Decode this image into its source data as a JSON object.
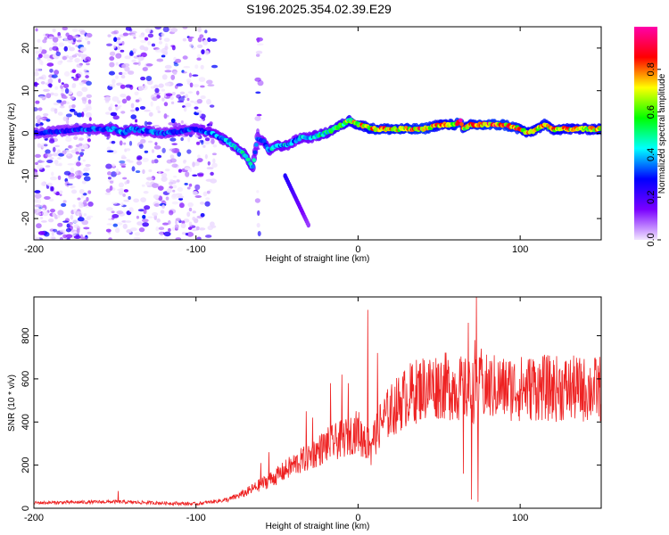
{
  "title": "S196.2025.354.02.39.E29",
  "chart_data": [
    {
      "type": "heatmap",
      "xlabel": "Height of straight line (km)",
      "ylabel": "Frequency (Hz)",
      "xlim": [
        -200,
        150
      ],
      "ylim": [
        -25,
        25
      ],
      "xticks": [
        -200,
        -100,
        0,
        100
      ],
      "xtick_labels": [
        "-200",
        "-100",
        "0",
        "100"
      ],
      "yticks": [
        -20,
        -10,
        0,
        10,
        20
      ],
      "ytick_labels": [
        "-20",
        "-10",
        "0",
        "10",
        "20"
      ],
      "colorbar": {
        "label": "Normalized spectral amplitude",
        "range": [
          0.0,
          1.0
        ],
        "ticks": [
          0.0,
          0.2,
          0.4,
          0.6,
          0.8
        ],
        "tick_labels": [
          "0.0",
          "0.2",
          "0.4",
          "0.6",
          "0.8"
        ],
        "colors": [
          "#f2e6ff",
          "#7a00ff",
          "#0000ff",
          "#00ffff",
          "#00ff00",
          "#ffff00",
          "#ff0000",
          "#ff00aa"
        ]
      },
      "ridge": {
        "x": [
          -200,
          -170,
          -150,
          -145,
          -140,
          -120,
          -100,
          -90,
          -80,
          -70,
          -65,
          -62,
          -58,
          -55,
          -50,
          -45,
          -40,
          -35,
          -30,
          -20,
          -15,
          -10,
          -5,
          0,
          10,
          20,
          30,
          40,
          50,
          60,
          63,
          65,
          70,
          80,
          90,
          100,
          105,
          110,
          115,
          120,
          130,
          140,
          150
        ],
        "y": [
          0,
          1,
          1,
          0,
          1,
          0,
          1,
          0,
          -2,
          -5,
          -8,
          -1,
          -2,
          -4,
          -3,
          -3,
          -2,
          -1,
          -1,
          0,
          1,
          2,
          3,
          2,
          1,
          1,
          1,
          1,
          2,
          2,
          3,
          1,
          2,
          2,
          2,
          1,
          0,
          1,
          2,
          1,
          1,
          1,
          1
        ],
        "amplitude": [
          0.3,
          0.35,
          0.4,
          0.45,
          0.4,
          0.35,
          0.35,
          0.4,
          0.45,
          0.5,
          0.5,
          0.35,
          0.4,
          0.45,
          0.45,
          0.45,
          0.4,
          0.45,
          0.45,
          0.55,
          0.6,
          0.65,
          0.7,
          0.75,
          0.85,
          0.85,
          0.85,
          0.9,
          0.8,
          0.85,
          0.95,
          0.8,
          0.85,
          0.9,
          0.9,
          0.85,
          0.8,
          0.8,
          0.85,
          0.8,
          0.8,
          0.75,
          0.8
        ]
      },
      "branch": {
        "x": [
          -45,
          -40,
          -35,
          -30
        ],
        "y": [
          -10,
          -14,
          -18,
          -22
        ],
        "amplitude": [
          0.25,
          0.2,
          0.15,
          0.1
        ]
      }
    },
    {
      "type": "line",
      "xlabel": "Height of straight line (km)",
      "ylabel": "SNR (10 * v/v)",
      "xlim": [
        -200,
        150
      ],
      "ylim": [
        0,
        980
      ],
      "xticks": [
        -200,
        -100,
        0,
        100
      ],
      "xtick_labels": [
        "-200",
        "-100",
        "0",
        "100"
      ],
      "yticks": [
        0,
        200,
        400,
        600,
        800
      ],
      "ytick_labels": [
        "0",
        "200",
        "400",
        "600",
        "800"
      ],
      "color": "#ee2222",
      "trend": {
        "x": [
          -200,
          -150,
          -100,
          -80,
          -70,
          -60,
          -50,
          -40,
          -30,
          -20,
          -10,
          0,
          5,
          10,
          15,
          20,
          30,
          40,
          50,
          60,
          70,
          80,
          90,
          100,
          110,
          120,
          130,
          140,
          150
        ],
        "y": [
          25,
          30,
          20,
          40,
          70,
          110,
          150,
          200,
          240,
          290,
          320,
          360,
          300,
          330,
          410,
          450,
          520,
          560,
          570,
          560,
          540,
          560,
          560,
          555,
          560,
          555,
          555,
          550,
          555
        ]
      },
      "spikes": {
        "x": [
          -148,
          -60,
          -55,
          -32,
          -28,
          -17,
          -10,
          -6,
          2,
          4,
          6,
          8,
          12,
          65,
          68,
          70,
          72,
          73,
          74,
          76,
          90,
          108,
          112
        ],
        "y": [
          80,
          210,
          260,
          450,
          420,
          580,
          620,
          580,
          240,
          380,
          920,
          200,
          720,
          160,
          860,
          40,
          780,
          980,
          30,
          740,
          620,
          690,
          670
        ]
      }
    }
  ]
}
